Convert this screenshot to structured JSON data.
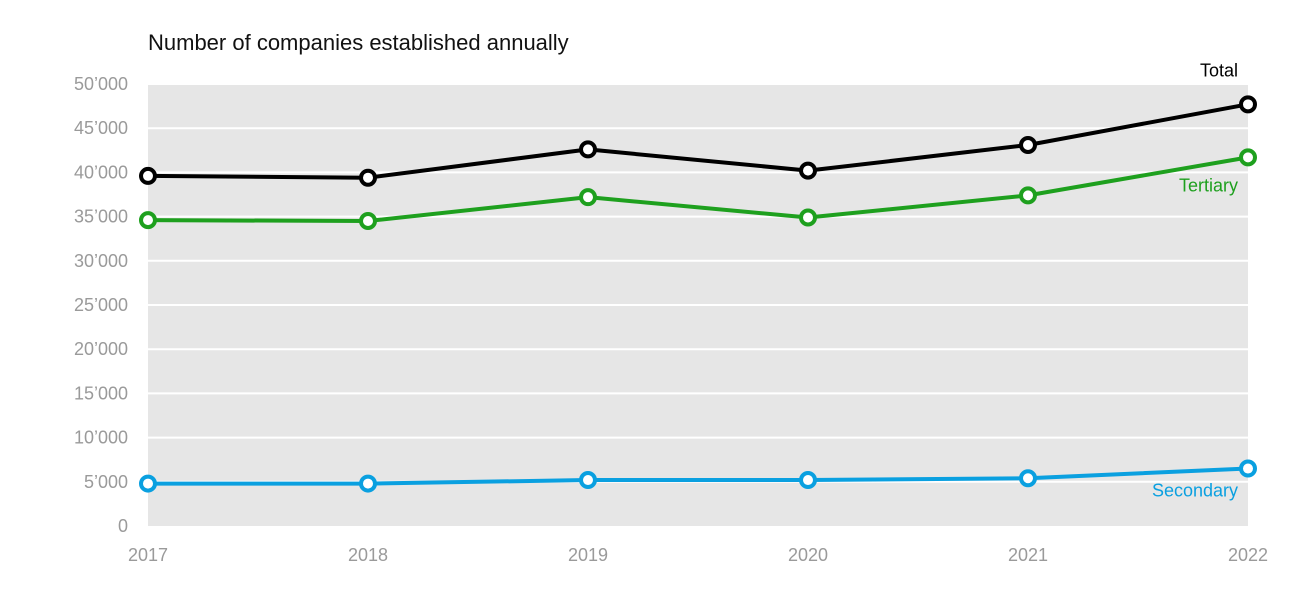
{
  "chart_data": {
    "type": "line",
    "title": "Number of companies established annually",
    "xlabel": "",
    "ylabel": "",
    "x": [
      "2017",
      "2018",
      "2019",
      "2020",
      "2021",
      "2022"
    ],
    "ylim": [
      0,
      50000
    ],
    "yticks": [
      0,
      5000,
      10000,
      15000,
      20000,
      25000,
      30000,
      35000,
      40000,
      45000,
      50000
    ],
    "ytick_labels": [
      "0",
      "5’000",
      "10’000",
      "15’000",
      "20’000",
      "25’000",
      "30’000",
      "35’000",
      "40’000",
      "45’000",
      "50’000"
    ],
    "grid": true,
    "legend": "inline-right",
    "series": [
      {
        "name": "Total",
        "color": "#000000",
        "values": [
          39600,
          39400,
          42600,
          40200,
          43100,
          47700
        ]
      },
      {
        "name": "Tertiary",
        "color": "#1ea01e",
        "values": [
          34600,
          34500,
          37200,
          34900,
          37400,
          41700
        ]
      },
      {
        "name": "Secondary",
        "color": "#0aa0e0",
        "values": [
          4800,
          4800,
          5200,
          5200,
          5400,
          6500
        ]
      }
    ],
    "colors": {
      "plot_background": "#e6e6e6",
      "gridline": "#ffffff",
      "tick_text": "#9a9a9a"
    }
  }
}
